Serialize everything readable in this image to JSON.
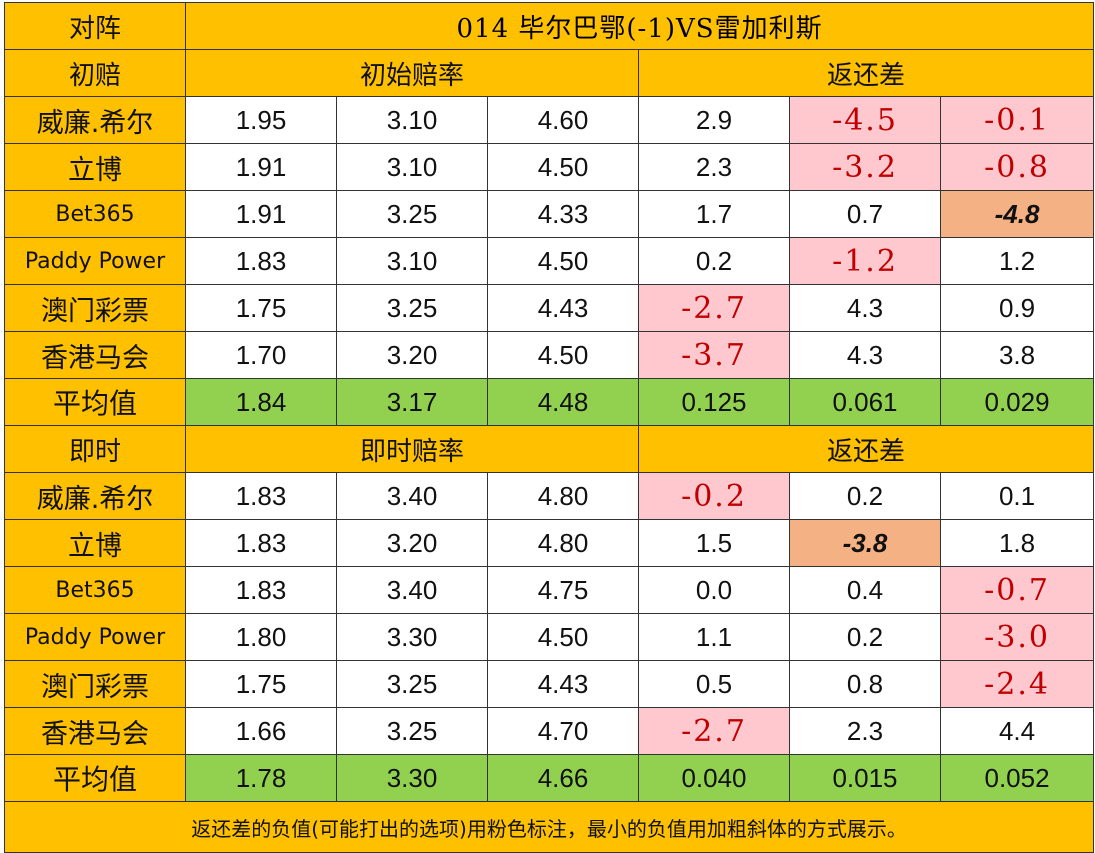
{
  "header": {
    "label": "对阵",
    "match": "014  毕尔巴鄂(-1)VS雷加利斯"
  },
  "initial": {
    "section_label": "初赔",
    "odds_title": "初始赔率",
    "diff_title": "返还差",
    "rows": [
      {
        "name": "威廉.希尔",
        "o1": "1.95",
        "o2": "3.10",
        "o3": "4.60",
        "d1": "2.9",
        "d2": "-4.5",
        "d3": "-0.1",
        "s1": "white",
        "s2": "pink",
        "s3": "pink"
      },
      {
        "name": "立博",
        "o1": "1.91",
        "o2": "3.10",
        "o3": "4.50",
        "d1": "2.3",
        "d2": "-3.2",
        "d3": "-0.8",
        "s1": "white",
        "s2": "pink",
        "s3": "pink"
      },
      {
        "name": "Bet365",
        "o1": "1.91",
        "o2": "3.25",
        "o3": "4.33",
        "d1": "1.7",
        "d2": "0.7",
        "d3": "-4.8",
        "s1": "white",
        "s2": "white",
        "s3": "min"
      },
      {
        "name": "Paddy Power",
        "o1": "1.83",
        "o2": "3.10",
        "o3": "4.50",
        "d1": "0.2",
        "d2": "-1.2",
        "d3": "1.2",
        "s1": "white",
        "s2": "pink",
        "s3": "white"
      },
      {
        "name": "澳门彩票",
        "o1": "1.75",
        "o2": "3.25",
        "o3": "4.43",
        "d1": "-2.7",
        "d2": "4.3",
        "d3": "0.9",
        "s1": "pink",
        "s2": "white",
        "s3": "white"
      },
      {
        "name": "香港马会",
        "o1": "1.70",
        "o2": "3.20",
        "o3": "4.50",
        "d1": "-3.7",
        "d2": "4.3",
        "d3": "3.8",
        "s1": "pink",
        "s2": "white",
        "s3": "white"
      }
    ],
    "average": {
      "label": "平均值",
      "o1": "1.84",
      "o2": "3.17",
      "o3": "4.48",
      "d1": "0.125",
      "d2": "0.061",
      "d3": "0.029"
    }
  },
  "live": {
    "section_label": "即时",
    "odds_title": "即时赔率",
    "diff_title": "返还差",
    "rows": [
      {
        "name": "威廉.希尔",
        "o1": "1.83",
        "o2": "3.40",
        "o3": "4.80",
        "d1": "-0.2",
        "d2": "0.2",
        "d3": "0.1",
        "s1": "pink",
        "s2": "white",
        "s3": "white"
      },
      {
        "name": "立博",
        "o1": "1.83",
        "o2": "3.20",
        "o3": "4.80",
        "d1": "1.5",
        "d2": "-3.8",
        "d3": "1.8",
        "s1": "white",
        "s2": "min",
        "s3": "white"
      },
      {
        "name": "Bet365",
        "o1": "1.83",
        "o2": "3.40",
        "o3": "4.75",
        "d1": "0.0",
        "d2": "0.4",
        "d3": "-0.7",
        "s1": "white",
        "s2": "white",
        "s3": "pink"
      },
      {
        "name": "Paddy Power",
        "o1": "1.80",
        "o2": "3.30",
        "o3": "4.50",
        "d1": "1.1",
        "d2": "0.2",
        "d3": "-3.0",
        "s1": "white",
        "s2": "white",
        "s3": "pink"
      },
      {
        "name": "澳门彩票",
        "o1": "1.75",
        "o2": "3.25",
        "o3": "4.43",
        "d1": "0.5",
        "d2": "0.8",
        "d3": "-2.4",
        "s1": "white",
        "s2": "white",
        "s3": "pink"
      },
      {
        "name": "香港马会",
        "o1": "1.66",
        "o2": "3.25",
        "o3": "4.70",
        "d1": "-2.7",
        "d2": "2.3",
        "d3": "4.4",
        "s1": "pink",
        "s2": "white",
        "s3": "white"
      }
    ],
    "average": {
      "label": "平均值",
      "o1": "1.78",
      "o2": "3.30",
      "o3": "4.66",
      "d1": "0.040",
      "d2": "0.015",
      "d3": "0.052"
    }
  },
  "footer": {
    "note": "返还差的负值(可能打出的选项)用粉色标注，最小的负值用加粗斜体的方式展示。"
  },
  "colors": {
    "header_bg": "#FFC000",
    "average_bg": "#92D050",
    "negative_bg": "#FFC7CE",
    "negative_text": "#C00000",
    "minimum_bg": "#F4B183"
  }
}
